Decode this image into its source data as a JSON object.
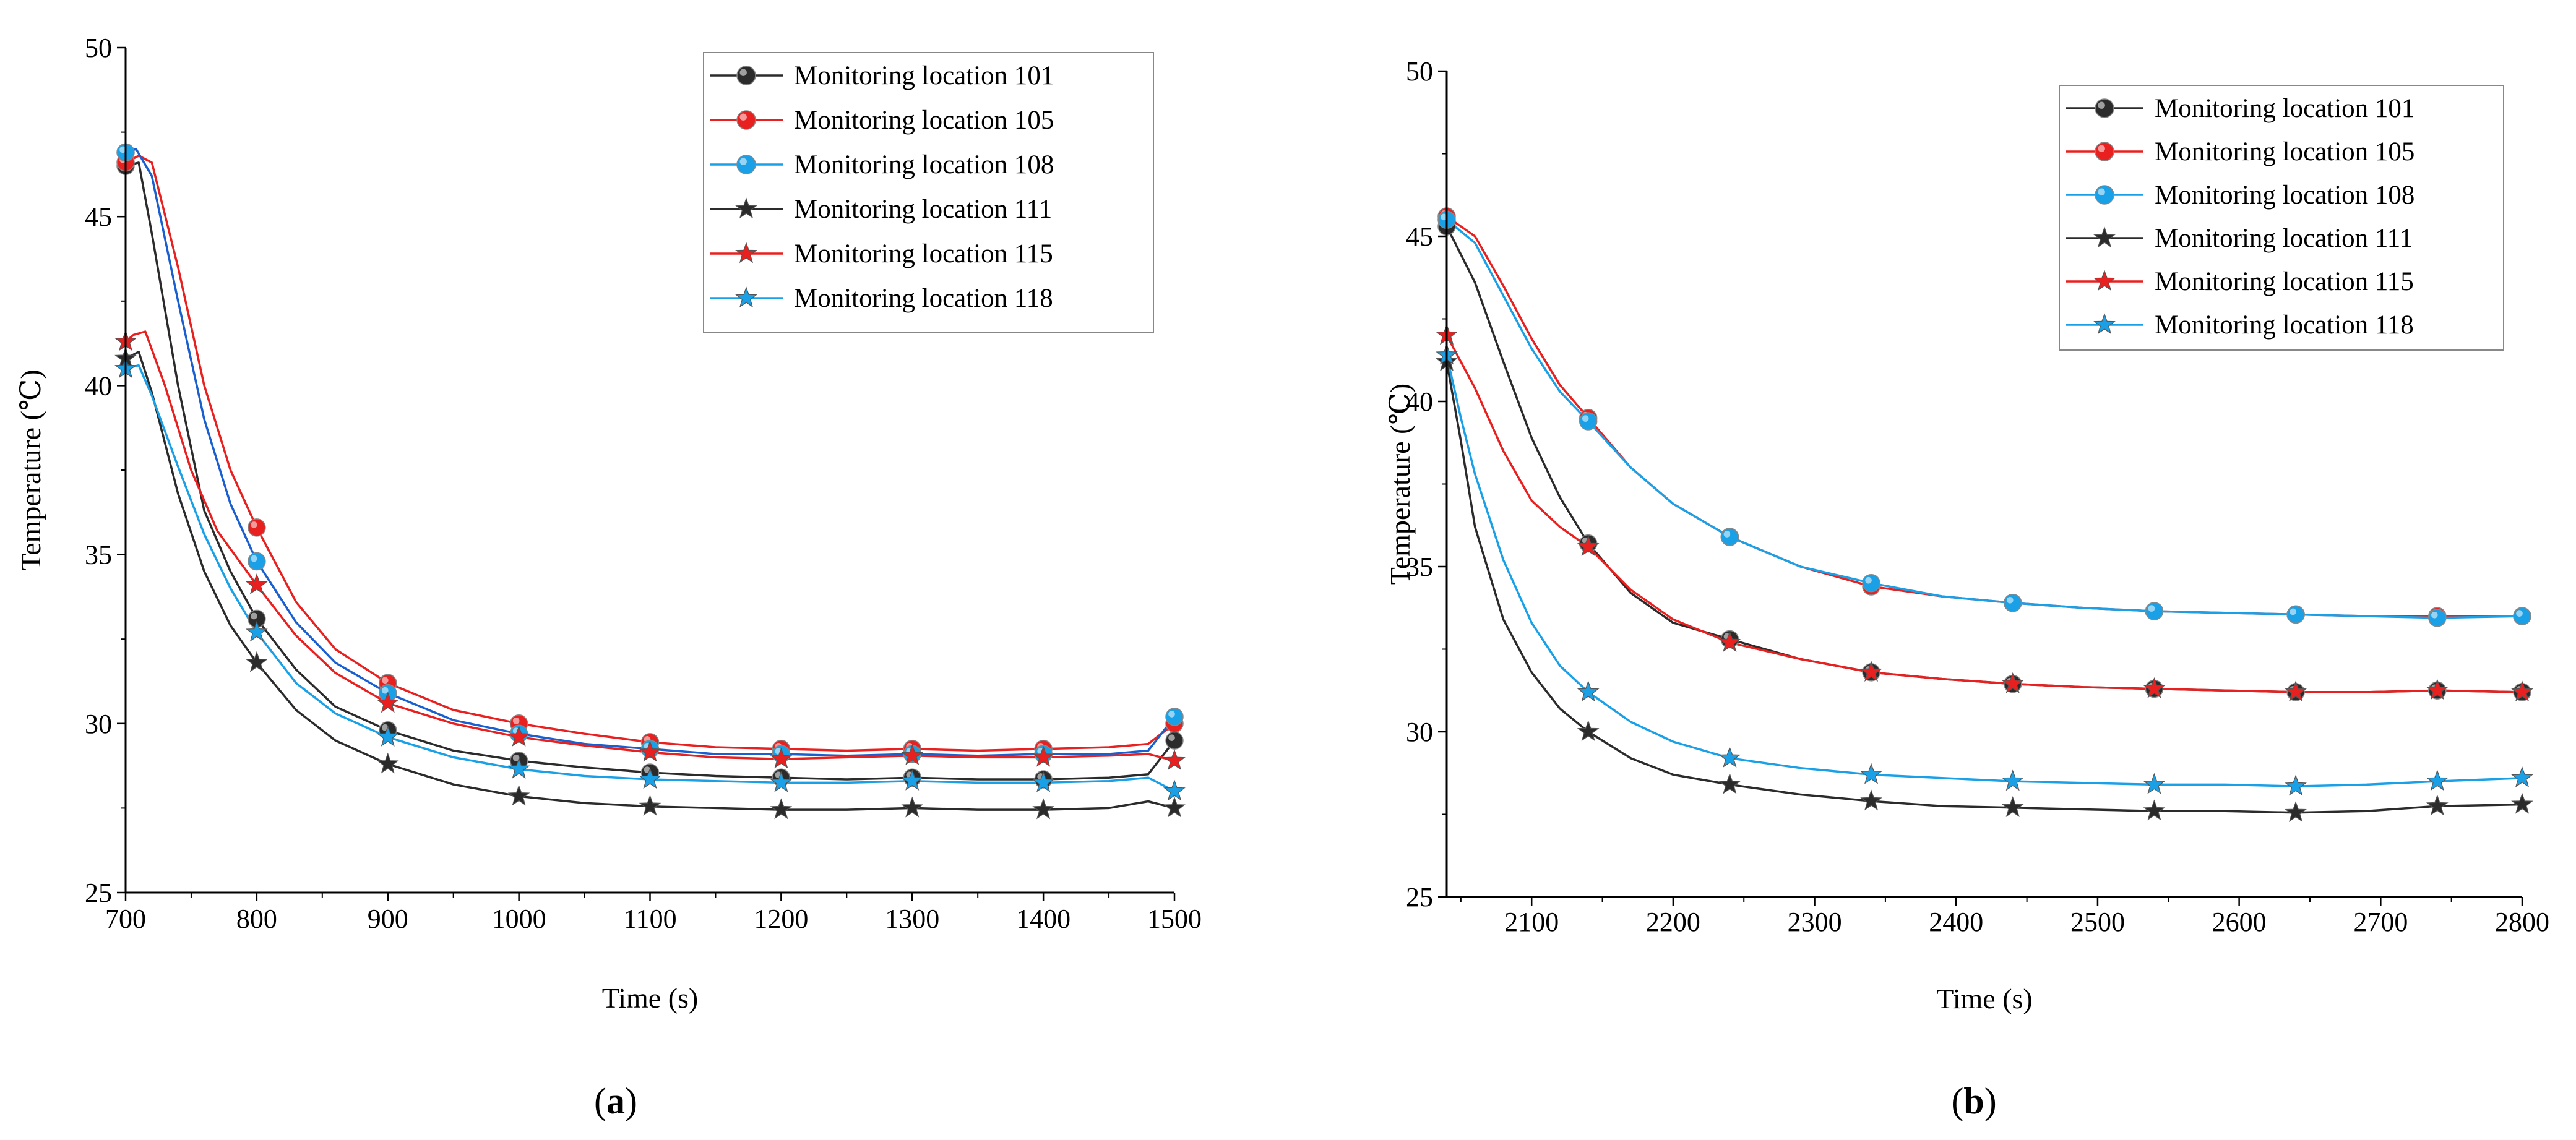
{
  "colors": {
    "black": "#2b2b2b",
    "red": "#e8201f",
    "blue": "#1aa0e6",
    "blue_dark": "#1a5fcf"
  },
  "chart_data": [
    {
      "type": "line",
      "panel": "a",
      "panel_label_open": "(",
      "panel_label_letter": "a",
      "panel_label_close": ")",
      "xlabel": "Time (s)",
      "ylabel": "Temperature (℃)",
      "xlim": [
        700,
        1500
      ],
      "ylim": [
        25,
        50
      ],
      "xticks": [
        700,
        800,
        900,
        1000,
        1100,
        1200,
        1300,
        1400,
        1500
      ],
      "yticks": [
        25,
        30,
        35,
        40,
        45,
        50
      ],
      "legend_position": "top-right",
      "series": [
        {
          "name": "Monitoring location 101",
          "color": "#2b2b2b",
          "marker": "circle",
          "x": [
            700,
            710,
            720,
            740,
            760,
            780,
            800,
            830,
            860,
            900,
            950,
            1000,
            1050,
            1100,
            1150,
            1200,
            1250,
            1300,
            1350,
            1400,
            1450,
            1480,
            1500
          ],
          "y": [
            46.5,
            46.6,
            44.5,
            40.0,
            36.3,
            34.5,
            33.1,
            31.6,
            30.5,
            29.8,
            29.2,
            28.9,
            28.7,
            28.55,
            28.45,
            28.4,
            28.35,
            28.4,
            28.35,
            28.35,
            28.4,
            28.5,
            29.5
          ],
          "markers_x": [
            700,
            800,
            900,
            1000,
            1100,
            1200,
            1300,
            1400,
            1500
          ]
        },
        {
          "name": "Monitoring location 105",
          "color": "#e8201f",
          "marker": "circle",
          "x": [
            700,
            710,
            720,
            740,
            760,
            780,
            800,
            830,
            860,
            900,
            950,
            1000,
            1050,
            1100,
            1150,
            1200,
            1250,
            1300,
            1350,
            1400,
            1450,
            1480,
            1500
          ],
          "y": [
            46.6,
            46.8,
            46.6,
            43.5,
            40.0,
            37.5,
            35.8,
            33.6,
            32.2,
            31.2,
            30.4,
            30.0,
            29.7,
            29.45,
            29.3,
            29.25,
            29.2,
            29.25,
            29.2,
            29.25,
            29.3,
            29.4,
            30.0
          ],
          "markers_x": [
            700,
            800,
            900,
            1000,
            1100,
            1200,
            1300,
            1400,
            1500
          ]
        },
        {
          "name": "Monitoring location 108",
          "color": "#1aa0e6",
          "marker": "circle",
          "x": [
            700,
            708,
            720,
            740,
            760,
            780,
            800,
            830,
            860,
            900,
            950,
            1000,
            1050,
            1100,
            1150,
            1200,
            1250,
            1300,
            1350,
            1400,
            1450,
            1480,
            1500
          ],
          "y": [
            46.9,
            47.0,
            46.2,
            42.5,
            39.0,
            36.5,
            34.8,
            33.0,
            31.8,
            30.9,
            30.1,
            29.7,
            29.4,
            29.25,
            29.1,
            29.1,
            29.05,
            29.1,
            29.05,
            29.1,
            29.1,
            29.2,
            30.2
          ],
          "markers_x": [
            700,
            800,
            900,
            1000,
            1100,
            1200,
            1300,
            1400,
            1500
          ]
        },
        {
          "name": "Monitoring location 111",
          "color": "#2b2b2b",
          "marker": "star",
          "x": [
            700,
            710,
            720,
            740,
            760,
            780,
            800,
            830,
            860,
            900,
            950,
            1000,
            1050,
            1100,
            1150,
            1200,
            1250,
            1300,
            1350,
            1400,
            1450,
            1480,
            1500
          ],
          "y": [
            40.8,
            41.0,
            39.8,
            36.8,
            34.5,
            32.9,
            31.8,
            30.4,
            29.5,
            28.8,
            28.2,
            27.85,
            27.65,
            27.55,
            27.5,
            27.45,
            27.45,
            27.5,
            27.45,
            27.45,
            27.5,
            27.7,
            27.5
          ],
          "markers_x": [
            700,
            800,
            900,
            1000,
            1100,
            1200,
            1300,
            1400,
            1500
          ]
        },
        {
          "name": "Monitoring location 115",
          "color": "#e8201f",
          "marker": "star",
          "x": [
            700,
            706,
            715,
            730,
            750,
            770,
            800,
            830,
            860,
            900,
            950,
            1000,
            1050,
            1100,
            1150,
            1200,
            1250,
            1300,
            1350,
            1400,
            1450,
            1480,
            1500
          ],
          "y": [
            41.3,
            41.5,
            41.6,
            40.0,
            37.5,
            35.7,
            34.1,
            32.6,
            31.5,
            30.6,
            30.0,
            29.6,
            29.35,
            29.15,
            29.0,
            28.95,
            29.0,
            29.05,
            29.0,
            29.0,
            29.05,
            29.1,
            28.9
          ],
          "markers_x": [
            700,
            800,
            900,
            1000,
            1100,
            1200,
            1300,
            1400,
            1500
          ]
        },
        {
          "name": "Monitoring location 118",
          "color": "#1aa0e6",
          "marker": "star",
          "x": [
            700,
            710,
            720,
            740,
            760,
            780,
            800,
            830,
            860,
            900,
            950,
            1000,
            1050,
            1100,
            1150,
            1200,
            1250,
            1300,
            1350,
            1400,
            1450,
            1480,
            1500
          ],
          "y": [
            40.5,
            40.6,
            39.7,
            37.6,
            35.6,
            34.0,
            32.7,
            31.2,
            30.3,
            29.6,
            29.0,
            28.65,
            28.45,
            28.35,
            28.3,
            28.25,
            28.25,
            28.3,
            28.25,
            28.25,
            28.3,
            28.4,
            28.0
          ],
          "markers_x": [
            700,
            800,
            900,
            1000,
            1100,
            1200,
            1300,
            1400,
            1500
          ]
        }
      ]
    },
    {
      "type": "line",
      "panel": "b",
      "panel_label_open": "(",
      "panel_label_letter": "b",
      "panel_label_close": ")",
      "xlabel": "Time (s)",
      "ylabel": "Temperature (℃)",
      "xlim": [
        2040,
        2800
      ],
      "ylim": [
        25,
        50
      ],
      "xticks": [
        2100,
        2200,
        2300,
        2400,
        2500,
        2600,
        2700,
        2800
      ],
      "yticks": [
        25,
        30,
        35,
        40,
        45,
        50
      ],
      "legend_position": "top-right",
      "series": [
        {
          "name": "Monitoring location 101",
          "color": "#2b2b2b",
          "marker": "circle",
          "x": [
            2040,
            2060,
            2080,
            2100,
            2120,
            2140,
            2170,
            2200,
            2240,
            2290,
            2340,
            2390,
            2440,
            2490,
            2540,
            2590,
            2640,
            2690,
            2740,
            2800
          ],
          "y": [
            45.3,
            43.6,
            41.2,
            38.9,
            37.1,
            35.7,
            34.2,
            33.3,
            32.8,
            32.2,
            31.8,
            31.6,
            31.45,
            31.35,
            31.3,
            31.25,
            31.2,
            31.2,
            31.25,
            31.2
          ],
          "markers_x": [
            2040,
            2140,
            2240,
            2340,
            2440,
            2540,
            2640,
            2740,
            2800
          ]
        },
        {
          "name": "Monitoring location 105",
          "color": "#e8201f",
          "marker": "circle",
          "x": [
            2040,
            2060,
            2080,
            2100,
            2120,
            2140,
            2170,
            2200,
            2240,
            2290,
            2340,
            2390,
            2440,
            2490,
            2540,
            2590,
            2640,
            2690,
            2740,
            2800
          ],
          "y": [
            45.6,
            45.0,
            43.5,
            41.9,
            40.5,
            39.5,
            38.0,
            36.9,
            35.9,
            35.0,
            34.4,
            34.1,
            33.9,
            33.75,
            33.65,
            33.6,
            33.55,
            33.5,
            33.5,
            33.5
          ],
          "markers_x": [
            2040,
            2140,
            2240,
            2340,
            2440,
            2540,
            2640,
            2740,
            2800
          ]
        },
        {
          "name": "Monitoring location 108",
          "color": "#1aa0e6",
          "marker": "circle",
          "x": [
            2040,
            2060,
            2080,
            2100,
            2120,
            2140,
            2170,
            2200,
            2240,
            2290,
            2340,
            2390,
            2440,
            2490,
            2540,
            2590,
            2640,
            2690,
            2740,
            2800
          ],
          "y": [
            45.5,
            44.8,
            43.2,
            41.6,
            40.3,
            39.4,
            38.0,
            36.9,
            35.9,
            35.0,
            34.5,
            34.1,
            33.9,
            33.75,
            33.65,
            33.6,
            33.55,
            33.5,
            33.45,
            33.5
          ],
          "markers_x": [
            2040,
            2140,
            2240,
            2340,
            2440,
            2540,
            2640,
            2740,
            2800
          ]
        },
        {
          "name": "Monitoring location 111",
          "color": "#2b2b2b",
          "marker": "star",
          "x": [
            2040,
            2050,
            2060,
            2080,
            2100,
            2120,
            2140,
            2170,
            2200,
            2240,
            2290,
            2340,
            2390,
            2440,
            2490,
            2540,
            2590,
            2640,
            2690,
            2740,
            2800
          ],
          "y": [
            41.2,
            38.8,
            36.2,
            33.4,
            31.8,
            30.7,
            30.0,
            29.2,
            28.7,
            28.4,
            28.1,
            27.9,
            27.75,
            27.7,
            27.65,
            27.6,
            27.6,
            27.55,
            27.6,
            27.75,
            27.8
          ],
          "markers_x": [
            2040,
            2140,
            2240,
            2340,
            2440,
            2540,
            2640,
            2740,
            2800
          ]
        },
        {
          "name": "Monitoring location 115",
          "color": "#e8201f",
          "marker": "star",
          "x": [
            2040,
            2060,
            2080,
            2100,
            2120,
            2140,
            2170,
            2200,
            2240,
            2290,
            2340,
            2390,
            2440,
            2490,
            2540,
            2590,
            2640,
            2690,
            2740,
            2800
          ],
          "y": [
            42.0,
            40.4,
            38.5,
            37.0,
            36.2,
            35.6,
            34.3,
            33.4,
            32.7,
            32.2,
            31.8,
            31.6,
            31.45,
            31.35,
            31.3,
            31.25,
            31.2,
            31.2,
            31.25,
            31.2
          ],
          "markers_x": [
            2040,
            2140,
            2240,
            2340,
            2440,
            2540,
            2640,
            2740,
            2800
          ]
        },
        {
          "name": "Monitoring location 118",
          "color": "#1aa0e6",
          "marker": "star",
          "x": [
            2040,
            2050,
            2060,
            2080,
            2100,
            2120,
            2140,
            2170,
            2200,
            2240,
            2290,
            2340,
            2390,
            2440,
            2490,
            2540,
            2590,
            2640,
            2690,
            2740,
            2800
          ],
          "y": [
            41.4,
            39.5,
            37.8,
            35.2,
            33.3,
            32.0,
            31.2,
            30.3,
            29.7,
            29.2,
            28.9,
            28.7,
            28.6,
            28.5,
            28.45,
            28.4,
            28.4,
            28.35,
            28.4,
            28.5,
            28.6
          ],
          "markers_x": [
            2040,
            2140,
            2240,
            2340,
            2440,
            2540,
            2640,
            2740,
            2800
          ]
        }
      ]
    }
  ]
}
